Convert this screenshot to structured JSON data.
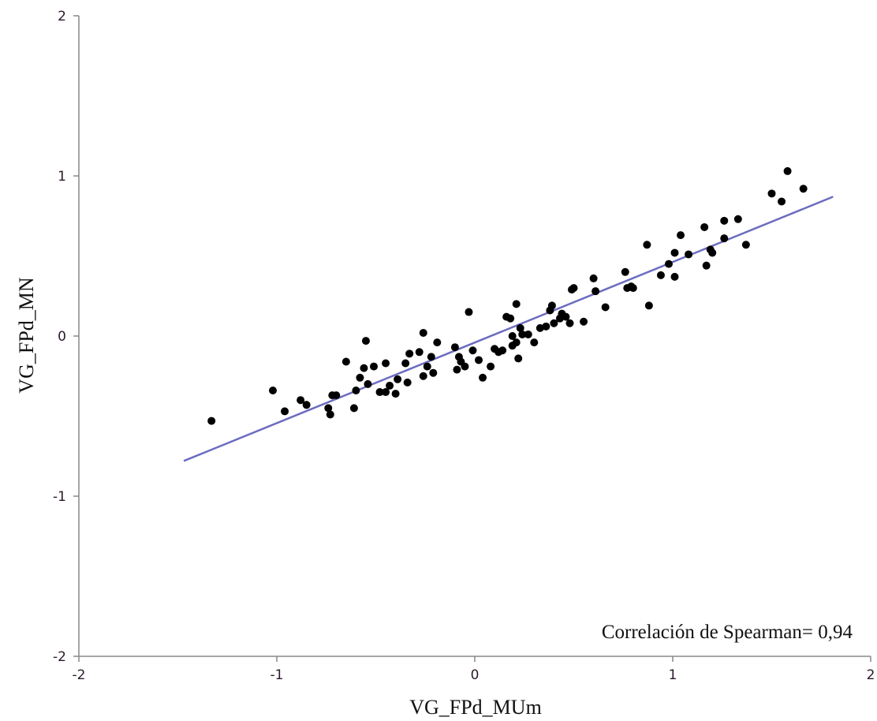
{
  "chart_data": {
    "type": "scatter",
    "xlabel": "VG_FPd_MUm",
    "ylabel": "VG_FPd_MN",
    "xlim": [
      -2,
      2
    ],
    "ylim": [
      -2,
      2
    ],
    "xticks": [
      "-2",
      "-1",
      "0",
      "1",
      "2"
    ],
    "yticks": [
      "-2",
      "-1",
      "0",
      "1",
      "2"
    ],
    "grid": false,
    "annotation": "Correlación de Spearman= 0,94",
    "colors": {
      "points": "#000000",
      "fit_line": "#6c6cc0",
      "axis": "#888888"
    },
    "fit_line": {
      "x": [
        -1.47,
        1.81
      ],
      "y": [
        -0.78,
        0.87
      ]
    },
    "points": [
      {
        "x": -1.33,
        "y": -0.53
      },
      {
        "x": -1.02,
        "y": -0.34
      },
      {
        "x": -0.96,
        "y": -0.47
      },
      {
        "x": -0.88,
        "y": -0.4
      },
      {
        "x": -0.85,
        "y": -0.43
      },
      {
        "x": -0.74,
        "y": -0.45
      },
      {
        "x": -0.73,
        "y": -0.49
      },
      {
        "x": -0.72,
        "y": -0.37
      },
      {
        "x": -0.7,
        "y": -0.37
      },
      {
        "x": -0.65,
        "y": -0.16
      },
      {
        "x": -0.61,
        "y": -0.45
      },
      {
        "x": -0.6,
        "y": -0.34
      },
      {
        "x": -0.58,
        "y": -0.26
      },
      {
        "x": -0.56,
        "y": -0.2
      },
      {
        "x": -0.55,
        "y": -0.03
      },
      {
        "x": -0.54,
        "y": -0.3
      },
      {
        "x": -0.51,
        "y": -0.19
      },
      {
        "x": -0.48,
        "y": -0.35
      },
      {
        "x": -0.45,
        "y": -0.35
      },
      {
        "x": -0.45,
        "y": -0.17
      },
      {
        "x": -0.43,
        "y": -0.31
      },
      {
        "x": -0.4,
        "y": -0.36
      },
      {
        "x": -0.39,
        "y": -0.27
      },
      {
        "x": -0.35,
        "y": -0.17
      },
      {
        "x": -0.34,
        "y": -0.29
      },
      {
        "x": -0.33,
        "y": -0.11
      },
      {
        "x": -0.28,
        "y": -0.1
      },
      {
        "x": -0.26,
        "y": 0.02
      },
      {
        "x": -0.26,
        "y": -0.25
      },
      {
        "x": -0.24,
        "y": -0.19
      },
      {
        "x": -0.22,
        "y": -0.13
      },
      {
        "x": -0.21,
        "y": -0.23
      },
      {
        "x": -0.19,
        "y": -0.04
      },
      {
        "x": -0.1,
        "y": -0.07
      },
      {
        "x": -0.09,
        "y": -0.21
      },
      {
        "x": -0.08,
        "y": -0.13
      },
      {
        "x": -0.07,
        "y": -0.16
      },
      {
        "x": -0.05,
        "y": -0.19
      },
      {
        "x": -0.03,
        "y": 0.15
      },
      {
        "x": -0.01,
        "y": -0.09
      },
      {
        "x": 0.02,
        "y": -0.15
      },
      {
        "x": 0.04,
        "y": -0.26
      },
      {
        "x": 0.08,
        "y": -0.19
      },
      {
        "x": 0.1,
        "y": -0.08
      },
      {
        "x": 0.12,
        "y": -0.1
      },
      {
        "x": 0.14,
        "y": -0.09
      },
      {
        "x": 0.16,
        "y": 0.12
      },
      {
        "x": 0.18,
        "y": 0.11
      },
      {
        "x": 0.19,
        "y": 0.0
      },
      {
        "x": 0.19,
        "y": -0.06
      },
      {
        "x": 0.21,
        "y": 0.2
      },
      {
        "x": 0.21,
        "y": -0.04
      },
      {
        "x": 0.22,
        "y": -0.14
      },
      {
        "x": 0.23,
        "y": 0.05
      },
      {
        "x": 0.24,
        "y": 0.01
      },
      {
        "x": 0.27,
        "y": 0.01
      },
      {
        "x": 0.3,
        "y": -0.04
      },
      {
        "x": 0.33,
        "y": 0.05
      },
      {
        "x": 0.36,
        "y": 0.06
      },
      {
        "x": 0.38,
        "y": 0.16
      },
      {
        "x": 0.39,
        "y": 0.19
      },
      {
        "x": 0.4,
        "y": 0.08
      },
      {
        "x": 0.43,
        "y": 0.11
      },
      {
        "x": 0.44,
        "y": 0.14
      },
      {
        "x": 0.46,
        "y": 0.12
      },
      {
        "x": 0.48,
        "y": 0.08
      },
      {
        "x": 0.49,
        "y": 0.29
      },
      {
        "x": 0.5,
        "y": 0.3
      },
      {
        "x": 0.55,
        "y": 0.09
      },
      {
        "x": 0.6,
        "y": 0.36
      },
      {
        "x": 0.61,
        "y": 0.28
      },
      {
        "x": 0.66,
        "y": 0.18
      },
      {
        "x": 0.76,
        "y": 0.4
      },
      {
        "x": 0.77,
        "y": 0.3
      },
      {
        "x": 0.79,
        "y": 0.31
      },
      {
        "x": 0.8,
        "y": 0.3
      },
      {
        "x": 0.87,
        "y": 0.57
      },
      {
        "x": 0.88,
        "y": 0.19
      },
      {
        "x": 0.94,
        "y": 0.38
      },
      {
        "x": 0.98,
        "y": 0.45
      },
      {
        "x": 1.01,
        "y": 0.52
      },
      {
        "x": 1.01,
        "y": 0.37
      },
      {
        "x": 1.04,
        "y": 0.63
      },
      {
        "x": 1.08,
        "y": 0.51
      },
      {
        "x": 1.16,
        "y": 0.68
      },
      {
        "x": 1.17,
        "y": 0.44
      },
      {
        "x": 1.19,
        "y": 0.54
      },
      {
        "x": 1.2,
        "y": 0.52
      },
      {
        "x": 1.26,
        "y": 0.72
      },
      {
        "x": 1.26,
        "y": 0.61
      },
      {
        "x": 1.33,
        "y": 0.73
      },
      {
        "x": 1.37,
        "y": 0.57
      },
      {
        "x": 1.5,
        "y": 0.89
      },
      {
        "x": 1.55,
        "y": 0.84
      },
      {
        "x": 1.58,
        "y": 1.03
      },
      {
        "x": 1.66,
        "y": 0.92
      }
    ]
  }
}
